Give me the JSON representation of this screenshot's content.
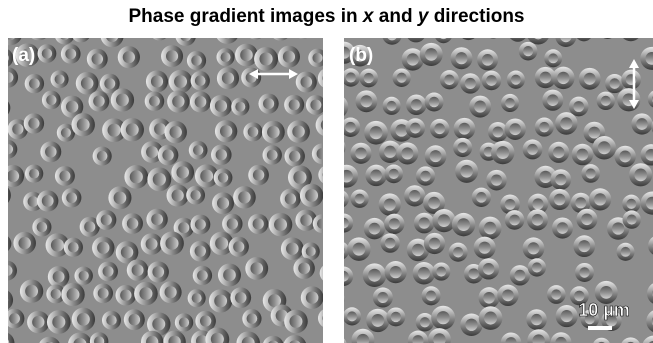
{
  "title": {
    "before": "Phase gradient images in ",
    "x": "x",
    "mid": " and ",
    "y": "y",
    "after": " directions"
  },
  "panels": [
    {
      "label": "(a)"
    },
    {
      "label": "(b)",
      "scale_bar": "10 µm"
    }
  ]
}
